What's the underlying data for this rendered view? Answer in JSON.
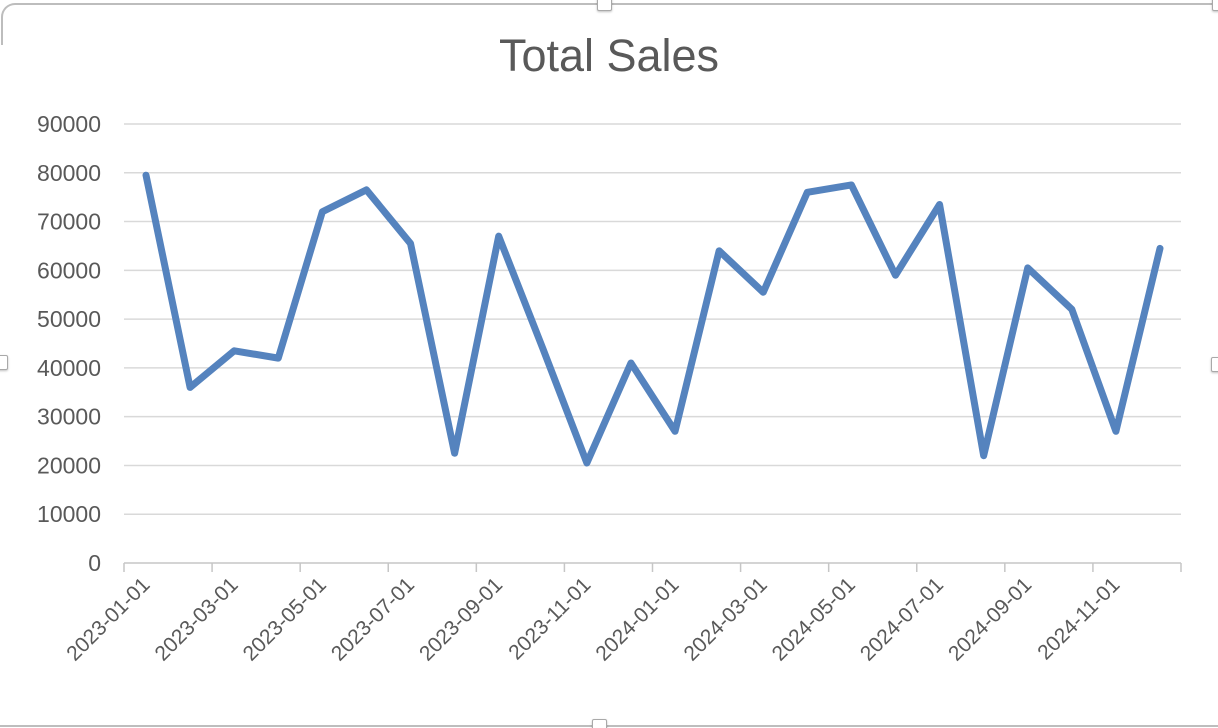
{
  "chart_data": {
    "type": "line",
    "title": "Total Sales",
    "xlabel": "",
    "ylabel": "",
    "x": [
      "2023-01-01",
      "2023-02-01",
      "2023-03-01",
      "2023-04-01",
      "2023-05-01",
      "2023-06-01",
      "2023-07-01",
      "2023-08-01",
      "2023-09-01",
      "2023-10-01",
      "2023-11-01",
      "2023-12-01",
      "2024-01-01",
      "2024-02-01",
      "2024-03-01",
      "2024-04-01",
      "2024-05-01",
      "2024-06-01",
      "2024-07-01",
      "2024-08-01",
      "2024-09-01",
      "2024-10-01",
      "2024-11-01",
      "2024-12-01"
    ],
    "series": [
      {
        "name": "Total Sales",
        "values": [
          79500,
          36000,
          43500,
          42000,
          72000,
          76500,
          65500,
          22500,
          67000,
          44000,
          20500,
          41000,
          27000,
          64000,
          55500,
          76000,
          77500,
          59000,
          73500,
          22000,
          60500,
          52000,
          27000,
          64500
        ]
      }
    ],
    "x_tick_labels": [
      "2023-01-01",
      "2023-03-01",
      "2023-05-01",
      "2023-07-01",
      "2023-09-01",
      "2023-11-01",
      "2024-01-01",
      "2024-03-01",
      "2024-05-01",
      "2024-07-01",
      "2024-09-01",
      "2024-11-01"
    ],
    "y_ticks": [
      0,
      10000,
      20000,
      30000,
      40000,
      50000,
      60000,
      70000,
      80000,
      90000
    ],
    "y_tick_labels": [
      "0",
      "10000",
      "20000",
      "30000",
      "40000",
      "50000",
      "60000",
      "70000",
      "80000",
      "90000"
    ],
    "ylim": [
      0,
      90000
    ],
    "grid": "horizontal",
    "legend": "none",
    "x_label_rotation_deg": 45,
    "line_color": "#5583BE",
    "axis_text_color": "#595959",
    "gridline_color": "#D9D9D9",
    "axis_line_color": "#C6C6C6"
  }
}
